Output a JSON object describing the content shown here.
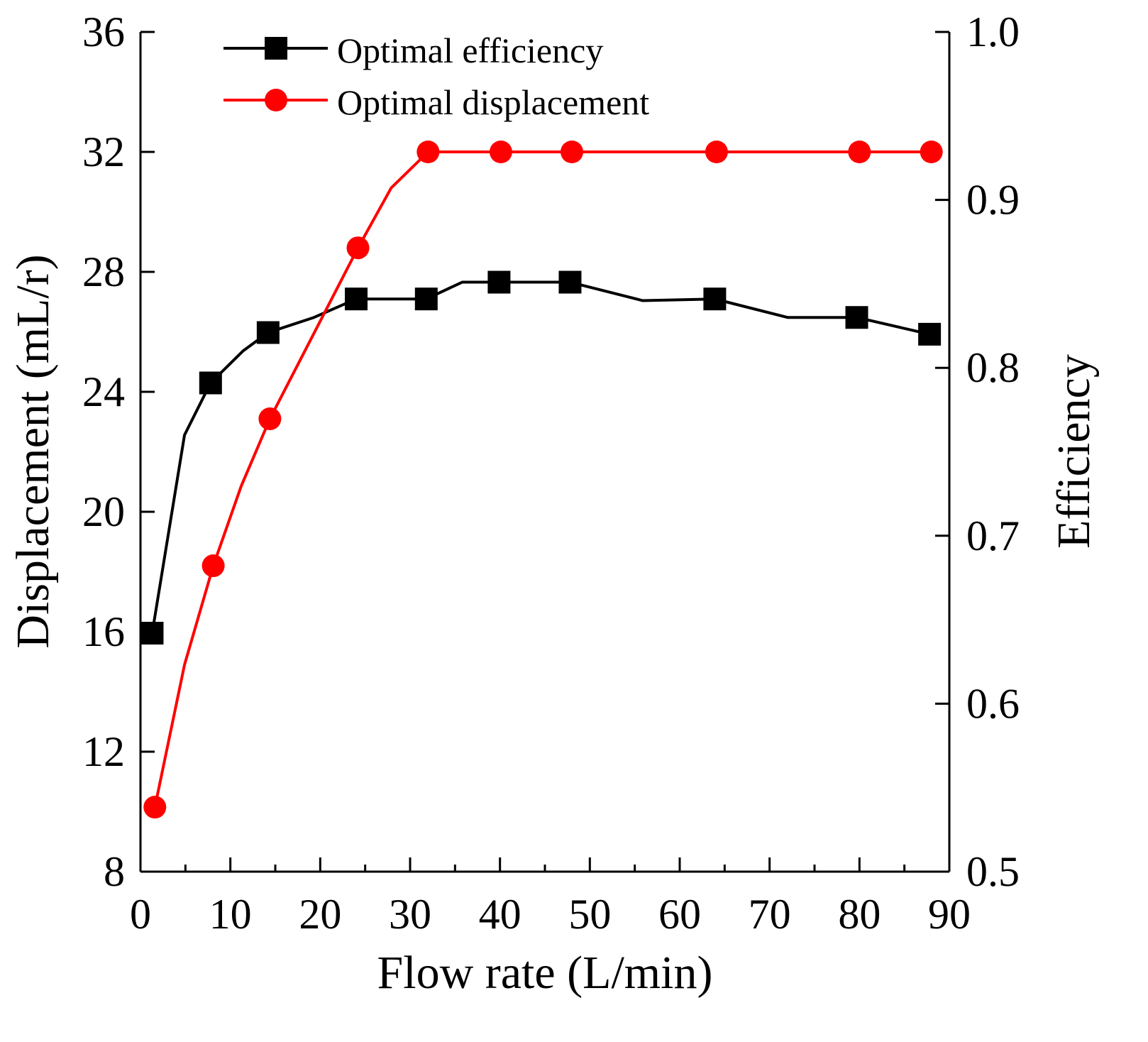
{
  "chart_data": {
    "type": "line",
    "xlabel": "Flow rate (L/min)",
    "ylabel": "Displacement (mL/r)",
    "y2label": "Efficiency",
    "xlim": [
      0,
      90
    ],
    "ylim": [
      8,
      36
    ],
    "y2lim": [
      0.5,
      1.0
    ],
    "xticks": [
      0,
      10,
      20,
      30,
      40,
      50,
      60,
      70,
      80,
      90
    ],
    "yticks": [
      8,
      12,
      16,
      20,
      24,
      28,
      32,
      36
    ],
    "y2ticks": [
      "0.5",
      "0.6",
      "0.7",
      "0.8",
      "0.9",
      "1.0"
    ],
    "grid": false,
    "legend_position": "top-left",
    "series": [
      {
        "name": "Optimal efficiency",
        "axis": "right",
        "color": "#000000",
        "marker": "square",
        "points": [
          {
            "x": 1.3,
            "y": 0.642,
            "marker": true
          },
          {
            "x": 4.9,
            "y": 0.76,
            "marker": false
          },
          {
            "x": 7.8,
            "y": 0.791,
            "marker": true
          },
          {
            "x": 11.4,
            "y": 0.81,
            "marker": false
          },
          {
            "x": 14.2,
            "y": 0.821,
            "marker": true
          },
          {
            "x": 19.3,
            "y": 0.83,
            "marker": false
          },
          {
            "x": 24.0,
            "y": 0.841,
            "marker": true
          },
          {
            "x": 31.8,
            "y": 0.841,
            "marker": true
          },
          {
            "x": 35.8,
            "y": 0.851,
            "marker": false
          },
          {
            "x": 39.9,
            "y": 0.851,
            "marker": true
          },
          {
            "x": 47.8,
            "y": 0.851,
            "marker": true
          },
          {
            "x": 55.9,
            "y": 0.84,
            "marker": false
          },
          {
            "x": 63.9,
            "y": 0.841,
            "marker": true
          },
          {
            "x": 72.0,
            "y": 0.83,
            "marker": false
          },
          {
            "x": 79.7,
            "y": 0.83,
            "marker": true
          },
          {
            "x": 87.8,
            "y": 0.82,
            "marker": true
          }
        ]
      },
      {
        "name": "Optimal displacement",
        "axis": "left",
        "color": "#ff0000",
        "marker": "circle",
        "points": [
          {
            "x": 1.6,
            "y": 10.15,
            "marker": true
          },
          {
            "x": 4.9,
            "y": 14.9,
            "marker": false
          },
          {
            "x": 8.1,
            "y": 18.2,
            "marker": true
          },
          {
            "x": 11.2,
            "y": 20.85,
            "marker": false
          },
          {
            "x": 14.4,
            "y": 23.1,
            "marker": true
          },
          {
            "x": 24.2,
            "y": 28.8,
            "marker": true
          },
          {
            "x": 27.9,
            "y": 30.8,
            "marker": false
          },
          {
            "x": 32.0,
            "y": 32.0,
            "marker": true
          },
          {
            "x": 40.1,
            "y": 32.0,
            "marker": true
          },
          {
            "x": 48.0,
            "y": 32.0,
            "marker": true
          },
          {
            "x": 64.1,
            "y": 32.0,
            "marker": true
          },
          {
            "x": 80.0,
            "y": 32.0,
            "marker": true
          },
          {
            "x": 88.0,
            "y": 32.0,
            "marker": true
          }
        ]
      }
    ]
  }
}
